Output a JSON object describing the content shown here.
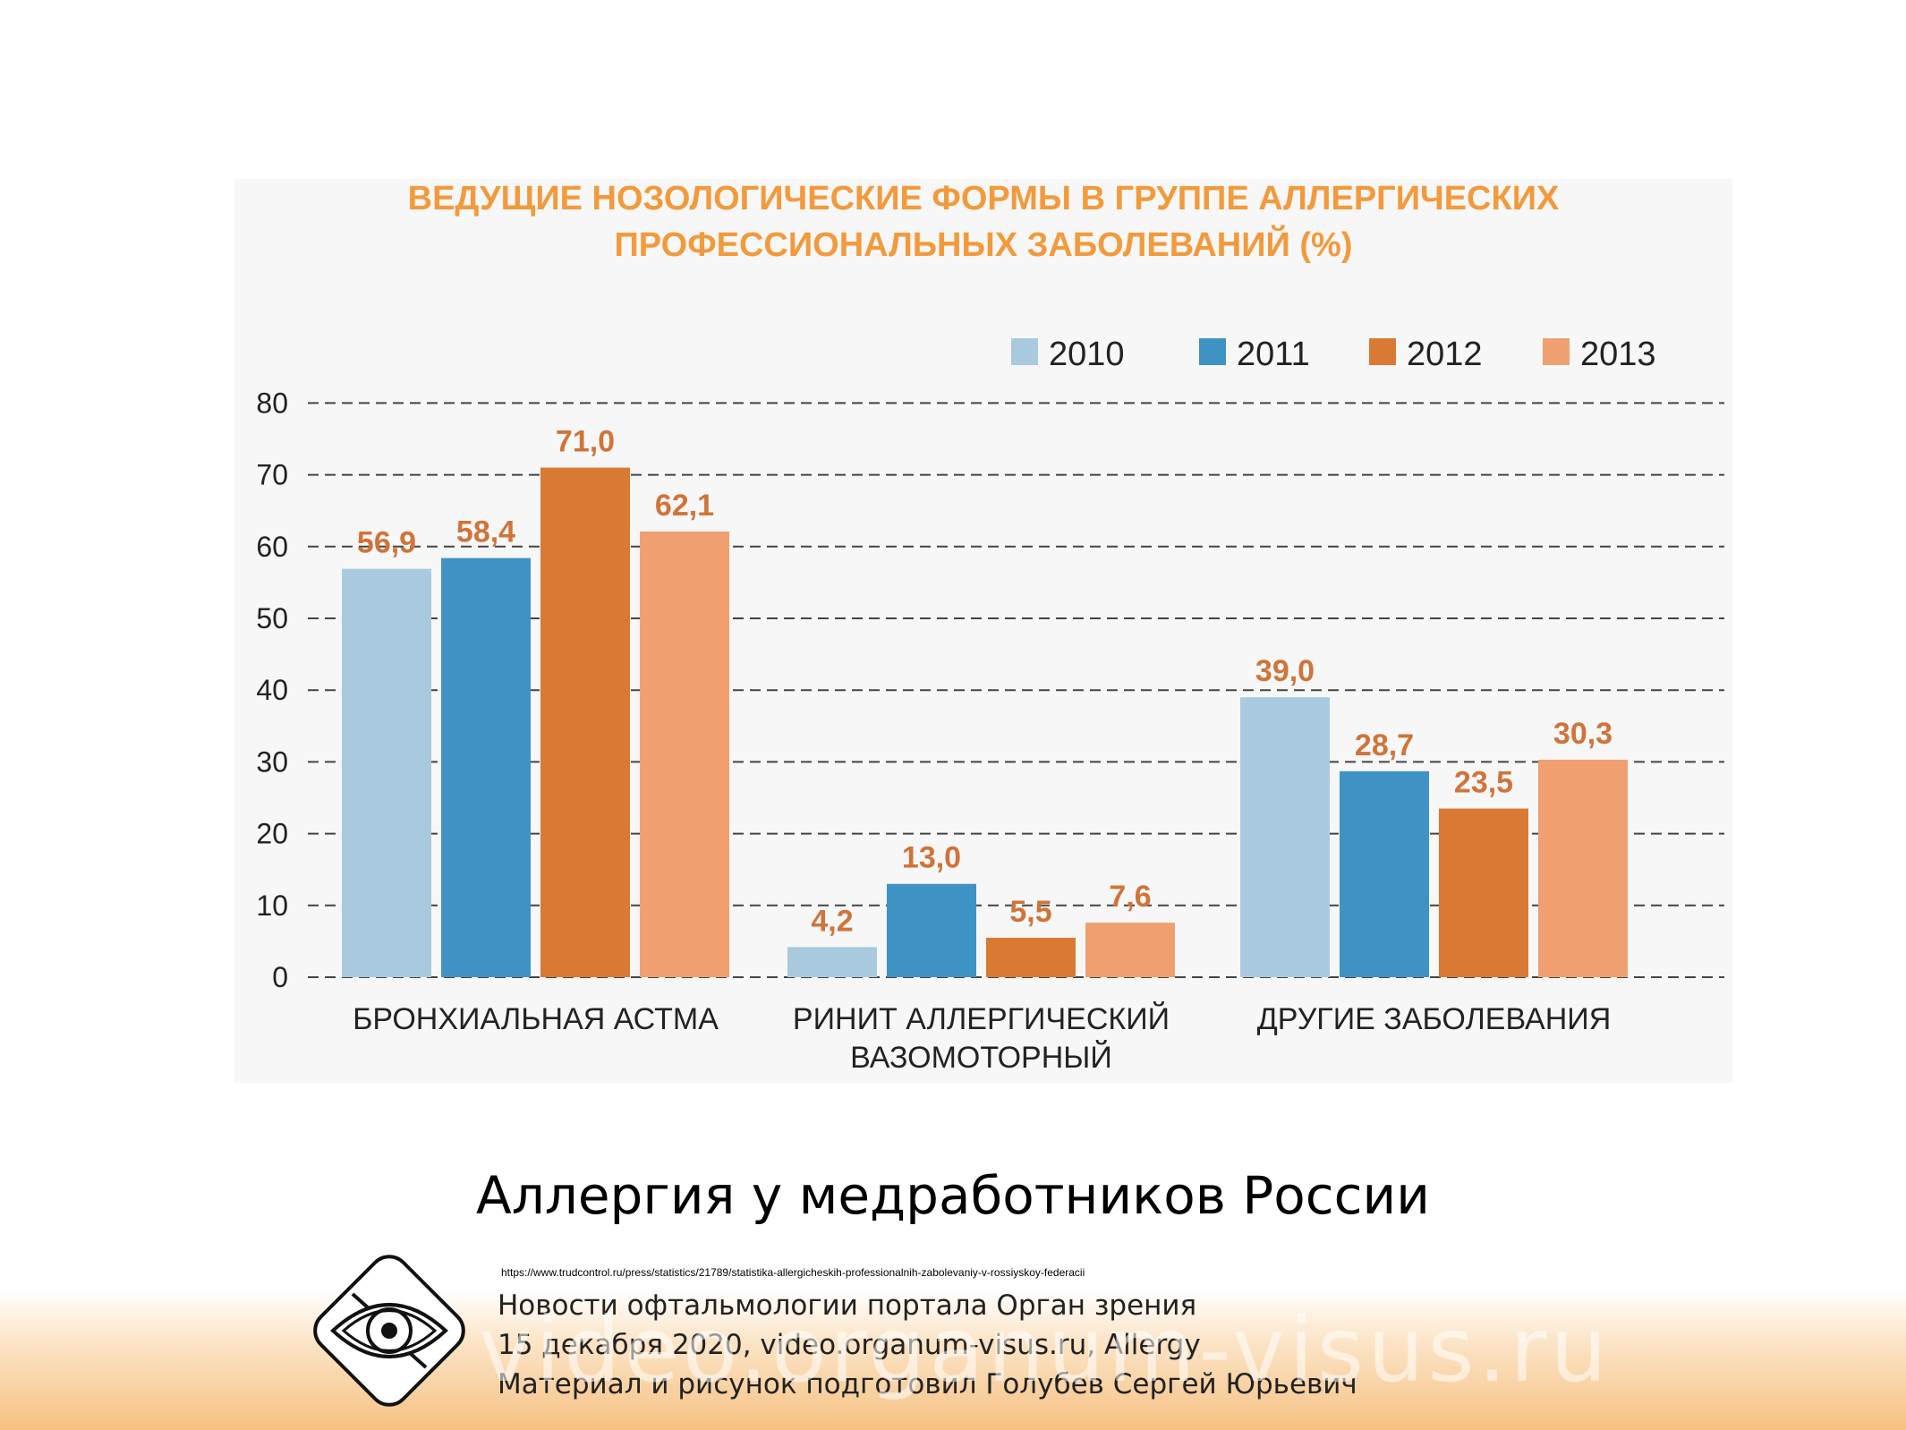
{
  "chart_data": {
    "type": "bar",
    "title_lines": [
      "ВЕДУЩИЕ НОЗОЛОГИЧЕСКИЕ ФОРМЫ В ГРУППЕ АЛЛЕРГИЧЕСКИХ",
      "ПРОФЕССИОНАЛЬНЫХ ЗАБОЛЕВАНИЙ (%)"
    ],
    "categories": [
      [
        "БРОНХИАЛЬНАЯ АСТМА"
      ],
      [
        "РИНИТ АЛЛЕРГИЧЕСКИЙ",
        "ВАЗОМОТОРНЫЙ"
      ],
      [
        "ДРУГИЕ ЗАБОЛЕВАНИЯ"
      ]
    ],
    "series": [
      {
        "name": "2010",
        "color": "#a9cade",
        "values": [
          56.9,
          4.2,
          39.0
        ],
        "labels": [
          "56,9",
          "4,2",
          "39,0"
        ]
      },
      {
        "name": "2011",
        "color": "#3f93c4",
        "values": [
          58.4,
          13.0,
          28.7
        ],
        "labels": [
          "58,4",
          "13,0",
          "28,7"
        ]
      },
      {
        "name": "2012",
        "color": "#d97a34",
        "values": [
          71.0,
          5.5,
          23.5
        ],
        "labels": [
          "71,0",
          "5,5",
          "23,5"
        ]
      },
      {
        "name": "2013",
        "color": "#f0a070",
        "values": [
          62.1,
          7.6,
          30.3
        ],
        "labels": [
          "62,1",
          "7,6",
          "30,3"
        ]
      }
    ],
    "yticks": [
      0,
      10,
      20,
      30,
      40,
      50,
      60,
      70,
      80
    ],
    "ylim": [
      0,
      80
    ],
    "grid": true,
    "legend_position": "top-right",
    "title_color": "#f29a3c",
    "label_color": "#d0743a"
  },
  "slide": {
    "title": "Аллергия у медработников России",
    "source_url": "https://www.trudcontrol.ru/press/statistics/21789/statistika-allergicheskih-professionalnih-zabolevaniy-v-rossiyskoy-federacii",
    "credit_lines": [
      "Новости офтальмологии портала Орган зрения",
      "15 декабря 2020, video.organum-visus.ru, Allergy",
      "Материал и рисунок подготовил Голубев Сергей Юрьевич"
    ],
    "watermark": "video.organum-visus.ru"
  }
}
